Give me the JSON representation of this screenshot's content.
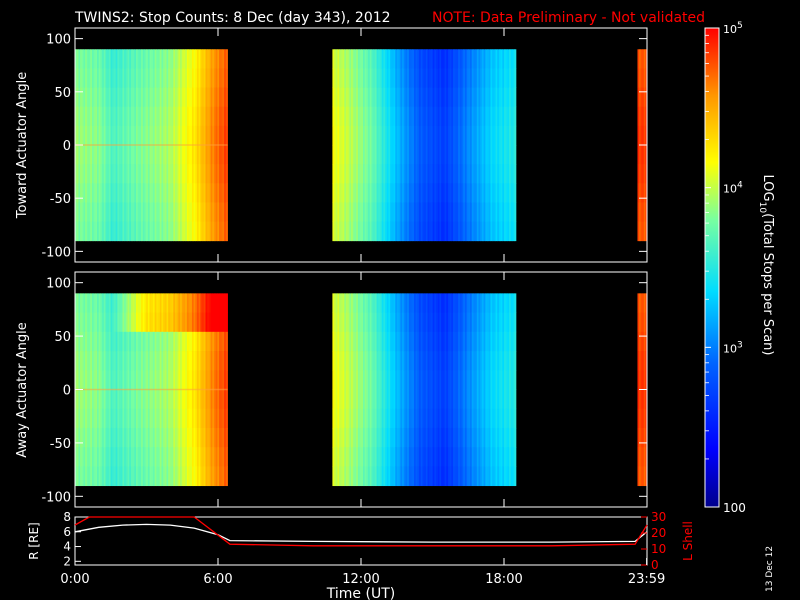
{
  "header": {
    "title": "TWINS2: Stop Counts:  8 Dec (day 343), 2012",
    "note": "NOTE: Data Preliminary - Not validated"
  },
  "footer": {
    "date_stamp": "13 Dec 12",
    "xlabel": "Time (UT)"
  },
  "colors": {
    "background": "#000000",
    "axes": "#ffffff",
    "note": "#ff0000",
    "lshell_line": "#ff0000",
    "r_line": "#ffffff"
  },
  "chart_data": [
    {
      "type": "heatmap",
      "ylabel": "Toward Actuator Angle",
      "ylim": [
        -110,
        110
      ],
      "yticks": [
        "100",
        "50",
        "0",
        "-50",
        "-100"
      ],
      "xlim": [
        0,
        24
      ],
      "data_segments": [
        {
          "start": 0.0,
          "end": 6.4
        },
        {
          "start": 10.8,
          "end": 18.5
        },
        {
          "start": 23.6,
          "end": 24.0
        }
      ],
      "time_profile": [
        {
          "t": 0.0,
          "log_counts": 3.85
        },
        {
          "t": 1.0,
          "log_counts": 3.8
        },
        {
          "t": 1.6,
          "log_counts": 3.6
        },
        {
          "t": 2.6,
          "log_counts": 3.75
        },
        {
          "t": 4.0,
          "log_counts": 3.9
        },
        {
          "t": 5.0,
          "log_counts": 4.2
        },
        {
          "t": 5.8,
          "log_counts": 4.6
        },
        {
          "t": 6.4,
          "log_counts": 4.8
        },
        {
          "t": 10.8,
          "log_counts": 4.1
        },
        {
          "t": 11.5,
          "log_counts": 3.95
        },
        {
          "t": 12.5,
          "log_counts": 3.7
        },
        {
          "t": 13.5,
          "log_counts": 3.2
        },
        {
          "t": 14.5,
          "log_counts": 2.8
        },
        {
          "t": 15.5,
          "log_counts": 2.65
        },
        {
          "t": 16.5,
          "log_counts": 3.0
        },
        {
          "t": 17.5,
          "log_counts": 3.3
        },
        {
          "t": 18.5,
          "log_counts": 3.45
        },
        {
          "t": 23.6,
          "log_counts": 4.8
        },
        {
          "t": 24.0,
          "log_counts": 4.8
        }
      ]
    },
    {
      "type": "heatmap",
      "ylabel": "Away Actuator Angle",
      "ylim": [
        -110,
        110
      ],
      "yticks": [
        "100",
        "50",
        "0",
        "-50",
        "-100"
      ],
      "xlim": [
        0,
        24
      ],
      "data_segments": [
        {
          "start": 0.0,
          "end": 6.4
        },
        {
          "start": 10.8,
          "end": 18.5
        },
        {
          "start": 23.6,
          "end": 24.0
        }
      ],
      "time_profile": [
        {
          "t": 0.0,
          "log_counts": 3.85
        },
        {
          "t": 1.0,
          "log_counts": 3.8
        },
        {
          "t": 1.6,
          "log_counts": 3.6
        },
        {
          "t": 2.6,
          "log_counts": 3.75
        },
        {
          "t": 4.0,
          "log_counts": 3.9
        },
        {
          "t": 5.0,
          "log_counts": 4.2
        },
        {
          "t": 5.8,
          "log_counts": 4.6
        },
        {
          "t": 6.4,
          "log_counts": 4.8
        },
        {
          "t": 10.8,
          "log_counts": 4.1
        },
        {
          "t": 11.5,
          "log_counts": 3.95
        },
        {
          "t": 12.5,
          "log_counts": 3.7
        },
        {
          "t": 13.5,
          "log_counts": 3.2
        },
        {
          "t": 14.5,
          "log_counts": 2.8
        },
        {
          "t": 15.5,
          "log_counts": 2.65
        },
        {
          "t": 16.5,
          "log_counts": 3.0
        },
        {
          "t": 17.5,
          "log_counts": 3.3
        },
        {
          "t": 18.5,
          "log_counts": 3.45
        },
        {
          "t": 23.6,
          "log_counts": 4.8
        },
        {
          "t": 24.0,
          "log_counts": 4.8
        }
      ],
      "enhancement_band": {
        "angle_min": 62,
        "angle_max": 85,
        "t_start": 1.5,
        "t_end": 6.4
      }
    },
    {
      "type": "line",
      "ylabel_left": "R [RE]",
      "ylabel_right": "L Shell",
      "xlabel": "Time (UT)",
      "ylim_left": [
        1.5,
        8
      ],
      "ylim_right": [
        0,
        30
      ],
      "yticks_left": [
        "8",
        "6",
        "4",
        "2"
      ],
      "yticks_right": [
        "30",
        "20",
        "10",
        "0"
      ],
      "xlim": [
        0,
        24
      ],
      "xticks": [
        {
          "t": 0,
          "label": "0:00"
        },
        {
          "t": 6,
          "label": "6:00"
        },
        {
          "t": 12,
          "label": "12:00"
        },
        {
          "t": 18,
          "label": "18:00"
        },
        {
          "t": 23.983,
          "label": "23:59"
        }
      ],
      "series": [
        {
          "name": "R",
          "axis": "left",
          "x": [
            0,
            1,
            2,
            3,
            4,
            5,
            6,
            6.5,
            10,
            15,
            20,
            23.5,
            24
          ],
          "y": [
            6.0,
            6.6,
            6.9,
            7.0,
            6.9,
            6.5,
            5.6,
            4.8,
            4.7,
            4.6,
            4.6,
            4.7,
            6.0
          ]
        },
        {
          "name": "L Shell",
          "axis": "right",
          "x": [
            0,
            0.6,
            5.0,
            6.5,
            10,
            15,
            20,
            23.5,
            24
          ],
          "y": [
            25,
            30,
            30,
            13,
            12,
            12,
            12,
            13,
            25
          ]
        }
      ]
    }
  ],
  "colorbar": {
    "label": "LOG10(Total Stops per Scan)",
    "label_main": "LOG",
    "label_sub": "10",
    "label_rest": "(Total Stops per Scan)",
    "ticks": [
      {
        "base": "10",
        "exp": "5",
        "log": 5
      },
      {
        "base": "10",
        "exp": "4",
        "log": 4
      },
      {
        "base": "10",
        "exp": "3",
        "log": 3
      },
      {
        "base": "100",
        "exp": "",
        "log": 2
      }
    ],
    "range_log": [
      2,
      5
    ]
  }
}
